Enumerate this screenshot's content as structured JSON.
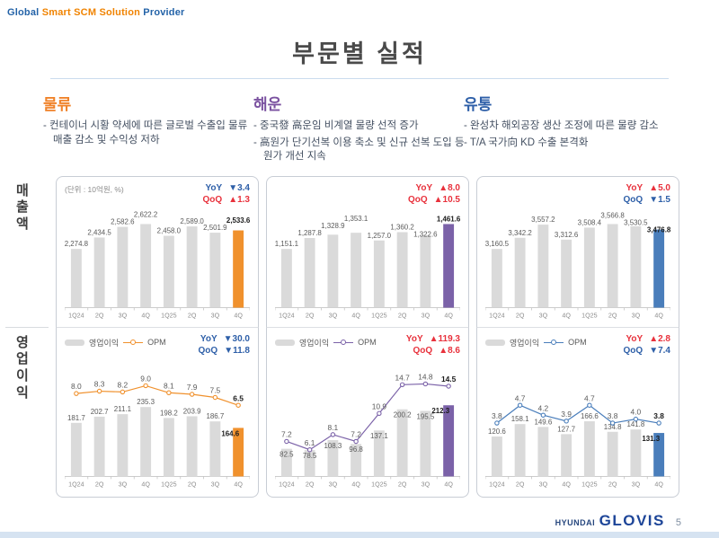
{
  "slogan": {
    "part1": "Global",
    "part2": "Smart SCM Solution",
    "part3": "Provider"
  },
  "title": "부문별 실적",
  "page_number": "5",
  "logo": {
    "brand": "HYUNDAI",
    "name": "GLOVIS"
  },
  "unit_label": "(단위 : 10억원, %)",
  "row_labels": {
    "revenue": "매출액",
    "operating_profit": "영업이익"
  },
  "legend": {
    "bar_label": "영업이익",
    "line_label": "OPM"
  },
  "colors": {
    "up_red": "#E8313C",
    "down_blue": "#2E5FA8",
    "bar_gray": "#DADADA",
    "slogan_blue": "#2463A8",
    "slogan_orange": "#F08300",
    "logo_navy": "#1D4598"
  },
  "sections": [
    {
      "id": "logistics",
      "title": "물류",
      "accent": "#F0832A",
      "bullets": [
        "컨테이너 시황 약세에 따른 글로벌 수출입 물류 매출 감소 및 수익성 저하"
      ]
    },
    {
      "id": "shipping",
      "title": "해운",
      "accent": "#7B52A0",
      "bullets": [
        "중국發 高운임 비계열 물량 선적 증가",
        "高원가 단기선복 이용 축소 및 신규 선복 도입 등 원가 개선 지속"
      ]
    },
    {
      "id": "distribution",
      "title": "유통",
      "accent": "#2E5FA8",
      "bullets": [
        "완성차 해외공장 생산 조정에 따른 물량 감소",
        "T/A 국가向 KD 수출 본격화"
      ]
    }
  ],
  "chart_data": [
    {
      "id": "logistics-revenue",
      "type": "bar",
      "section": "물류",
      "row": "매출액",
      "categories": [
        "1Q24",
        "2Q",
        "3Q",
        "4Q",
        "1Q25",
        "2Q",
        "3Q",
        "4Q"
      ],
      "values": [
        2274.8,
        2434.5,
        2582.6,
        2622.2,
        2458.0,
        2589.0,
        2501.9,
        2533.6
      ],
      "labels": [
        "2,274.8",
        "2,434.5",
        "2,582.6",
        "2,622.2",
        "2,458.0",
        "2,589.0",
        "2,501.9",
        "2,533.6"
      ],
      "highlight_color": "#F0912D",
      "yoy": {
        "label": "YoY",
        "direction": "down",
        "value": "3.4"
      },
      "qoq": {
        "label": "QoQ",
        "direction": "up",
        "value": "1.3"
      }
    },
    {
      "id": "shipping-revenue",
      "type": "bar",
      "section": "해운",
      "row": "매출액",
      "categories": [
        "1Q24",
        "2Q",
        "3Q",
        "4Q",
        "1Q25",
        "2Q",
        "3Q",
        "4Q"
      ],
      "values": [
        1151.1,
        1287.8,
        1328.9,
        1353.1,
        1257.0,
        1360.2,
        1322.6,
        1461.6
      ],
      "labels": [
        "1,151.1",
        "1,287.8",
        "1,328.9",
        "1,353.1",
        "1,257.0",
        "1,360.2",
        "1,322.6",
        "1,461.6"
      ],
      "highlight_color": "#7B62A8",
      "yoy": {
        "label": "YoY",
        "direction": "up",
        "value": "8.0"
      },
      "qoq": {
        "label": "QoQ",
        "direction": "up",
        "value": "10.5"
      }
    },
    {
      "id": "distribution-revenue",
      "type": "bar",
      "section": "유통",
      "row": "매출액",
      "categories": [
        "1Q24",
        "2Q",
        "3Q",
        "4Q",
        "1Q25",
        "2Q",
        "3Q",
        "4Q"
      ],
      "values": [
        3160.5,
        3342.2,
        3557.2,
        3312.6,
        3508.4,
        3566.8,
        3530.5,
        3476.8
      ],
      "labels": [
        "3,160.5",
        "3,342.2",
        "3,557.2",
        "3,312.6",
        "3,508.4",
        "3,566.8",
        "3,530.5",
        "3,476.8"
      ],
      "highlight_color": "#4A7EBB",
      "yoy": {
        "label": "YoY",
        "direction": "up",
        "value": "5.0"
      },
      "qoq": {
        "label": "QoQ",
        "direction": "down",
        "value": "1.5"
      }
    },
    {
      "id": "logistics-op",
      "type": "bar+line",
      "section": "물류",
      "row": "영업이익",
      "categories": [
        "1Q24",
        "2Q",
        "3Q",
        "4Q",
        "1Q25",
        "2Q",
        "3Q",
        "4Q"
      ],
      "series": [
        {
          "name": "영업이익",
          "type": "bar",
          "values": [
            181.7,
            202.7,
            211.1,
            235.3,
            198.2,
            203.9,
            186.7,
            164.6
          ],
          "labels": [
            "181.7",
            "202.7",
            "211.1",
            "235.3",
            "198.2",
            "203.9",
            "186.7",
            "164.6"
          ]
        },
        {
          "name": "OPM",
          "type": "line",
          "values": [
            8.0,
            8.3,
            8.2,
            9.0,
            8.1,
            7.9,
            7.5,
            6.5
          ],
          "labels": [
            "8.0",
            "8.3",
            "8.2",
            "9.0",
            "8.1",
            "7.9",
            "7.5",
            "6.5"
          ]
        }
      ],
      "highlight_color": "#F0912D",
      "line_color": "#F0912D",
      "yoy": {
        "label": "YoY",
        "direction": "down",
        "value": "30.0"
      },
      "qoq": {
        "label": "QoQ",
        "direction": "down",
        "value": "11.8"
      }
    },
    {
      "id": "shipping-op",
      "type": "bar+line",
      "section": "해운",
      "row": "영업이익",
      "categories": [
        "1Q24",
        "2Q",
        "3Q",
        "4Q",
        "1Q25",
        "2Q",
        "3Q",
        "4Q"
      ],
      "series": [
        {
          "name": "영업이익",
          "type": "bar",
          "values": [
            82.5,
            78.5,
            108.3,
            96.8,
            137.1,
            200.2,
            195.5,
            212.3
          ],
          "labels": [
            "82.5",
            "78.5",
            "108.3",
            "96.8",
            "137.1",
            "200.2",
            "195.5",
            "212.3"
          ]
        },
        {
          "name": "OPM",
          "type": "line",
          "values": [
            7.2,
            6.1,
            8.1,
            7.2,
            10.9,
            14.7,
            14.8,
            14.5
          ],
          "labels": [
            "7.2",
            "6.1",
            "8.1",
            "7.2",
            "10.9",
            "14.7",
            "14.8",
            "14.5"
          ]
        }
      ],
      "highlight_color": "#7B62A8",
      "line_color": "#7B62A8",
      "yoy": {
        "label": "YoY",
        "direction": "up",
        "value": "119.3"
      },
      "qoq": {
        "label": "QoQ",
        "direction": "up",
        "value": "8.6"
      }
    },
    {
      "id": "distribution-op",
      "type": "bar+line",
      "section": "유통",
      "row": "영업이익",
      "categories": [
        "1Q24",
        "2Q",
        "3Q",
        "4Q",
        "1Q25",
        "2Q",
        "3Q",
        "4Q"
      ],
      "series": [
        {
          "name": "영업이익",
          "type": "bar",
          "values": [
            120.6,
            158.1,
            149.6,
            127.7,
            166.6,
            134.8,
            141.8,
            131.3
          ],
          "labels": [
            "120.6",
            "158.1",
            "149.6",
            "127.7",
            "166.6",
            "134.8",
            "141.8",
            "131.3"
          ]
        },
        {
          "name": "OPM",
          "type": "line",
          "values": [
            3.8,
            4.7,
            4.2,
            3.9,
            4.7,
            3.8,
            4.0,
            3.8
          ],
          "labels": [
            "3.8",
            "4.7",
            "4.2",
            "3.9",
            "4.7",
            "3.8",
            "4.0",
            "3.8"
          ]
        }
      ],
      "highlight_color": "#4A7EBB",
      "line_color": "#4A7EBB",
      "yoy": {
        "label": "YoY",
        "direction": "up",
        "value": "2.8"
      },
      "qoq": {
        "label": "QoQ",
        "direction": "down",
        "value": "7.4"
      }
    }
  ]
}
